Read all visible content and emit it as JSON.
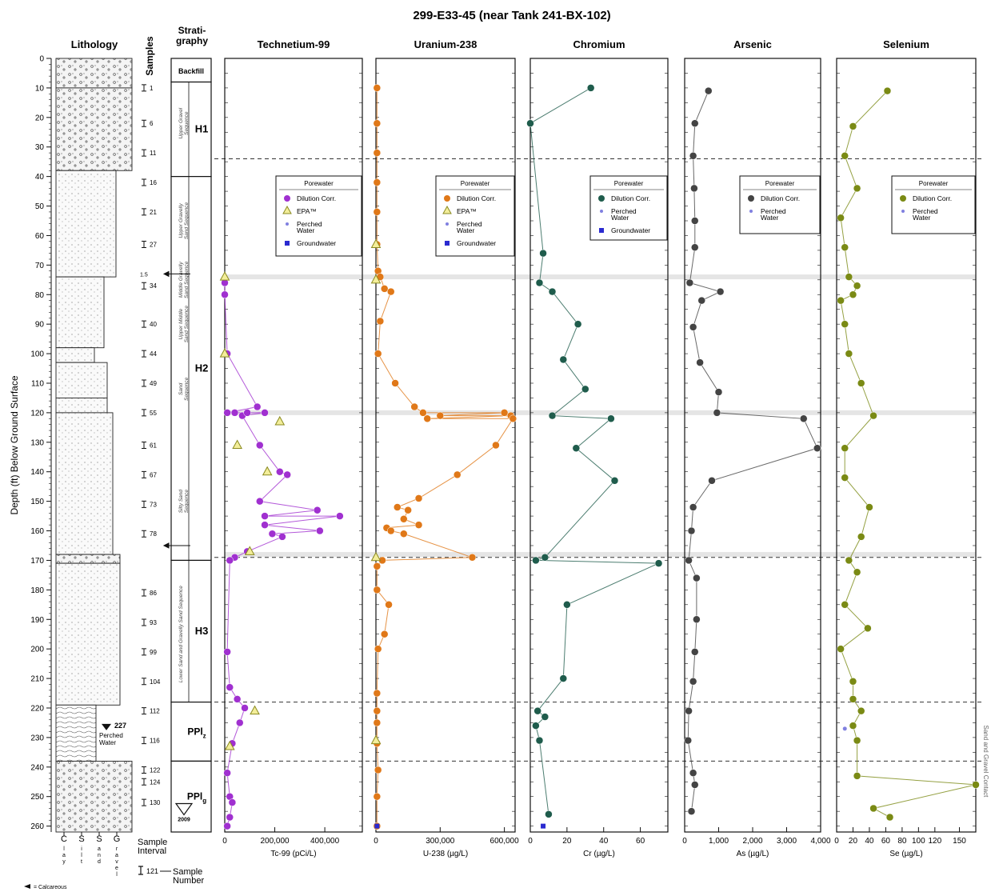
{
  "title": "299-E33-45 (near Tank 241-BX-102)",
  "depth_axis": {
    "label": "Depth (ft) Below Ground Surface",
    "ticks": [
      0,
      10,
      20,
      30,
      40,
      50,
      60,
      70,
      80,
      90,
      100,
      110,
      120,
      130,
      140,
      150,
      160,
      170,
      180,
      190,
      200,
      210,
      220,
      230,
      240,
      250,
      260
    ]
  },
  "columns": {
    "lithology": "Lithology",
    "samples": "Samples",
    "stratigraphy": "Strati-\ngraphy"
  },
  "lithology_axis": [
    "C",
    "S",
    "S",
    "G"
  ],
  "lithology_axis_sub": [
    "l\na\ny",
    "i\nl\nt",
    "a\nn\nd",
    "r\na\nv\ne\nl"
  ],
  "legend_bottom": {
    "interval": "Sample\nInterval",
    "number": "121",
    "number_label": "Sample\nNumber",
    "calcareous": "= Calcareous"
  },
  "samples": [
    {
      "depth": 10,
      "label": "1"
    },
    {
      "depth": 22,
      "label": "6"
    },
    {
      "depth": 32,
      "label": "11"
    },
    {
      "depth": 42,
      "label": "16"
    },
    {
      "depth": 52,
      "label": "21"
    },
    {
      "depth": 63,
      "label": "27"
    },
    {
      "depth": 77,
      "label": "34"
    },
    {
      "depth": 90,
      "label": "40"
    },
    {
      "depth": 100,
      "label": "44"
    },
    {
      "depth": 110,
      "label": "49"
    },
    {
      "depth": 120,
      "label": "55"
    },
    {
      "depth": 131,
      "label": "61"
    },
    {
      "depth": 141,
      "label": "67"
    },
    {
      "depth": 151,
      "label": "73"
    },
    {
      "depth": 161,
      "label": "78"
    },
    {
      "depth": 181,
      "label": "86"
    },
    {
      "depth": 191,
      "label": "93"
    },
    {
      "depth": 201,
      "label": "99"
    },
    {
      "depth": 211,
      "label": "104"
    },
    {
      "depth": 221,
      "label": "112"
    },
    {
      "depth": 231,
      "label": "116"
    },
    {
      "depth": 241,
      "label": "122"
    },
    {
      "depth": 245,
      "label": "124"
    },
    {
      "depth": 252,
      "label": "130"
    }
  ],
  "stratigraphy": {
    "units": [
      {
        "label": "Backfill",
        "top": 0,
        "bottom": 8
      },
      {
        "label": "H1",
        "top": 8,
        "bottom": 40
      },
      {
        "label": "H2",
        "top": 40,
        "bottom": 170
      },
      {
        "label": "H3",
        "top": 170,
        "bottom": 218
      },
      {
        "label": "PPl_z",
        "top": 218,
        "bottom": 238
      },
      {
        "label": "PPl_g",
        "top": 238,
        "bottom": 262
      }
    ],
    "water_level": {
      "depth": 227,
      "label": "227",
      "note": "Perched\nWater"
    },
    "water_level_bottom": {
      "label": "2009"
    },
    "markers": [
      {
        "depth": 73,
        "label": "1.5"
      },
      {
        "depth": 165,
        "label": ""
      }
    ],
    "sequences": [
      "Upper Gravel\nSequence",
      "Upper Gravelly\nSand Sequence",
      "Middle Gravelly\nSand Sequence",
      "Upper Middle\nSand Sequence",
      "Sand\nSequence",
      "Silty Sand\nSequence",
      "Lower Sand and Gravelly Sand Sequence"
    ],
    "right_note": "Sand and Gravel Contact"
  },
  "guides": {
    "dashed": [
      34,
      169,
      218,
      238
    ],
    "gray_bands": [
      74,
      120,
      168
    ]
  },
  "chart_data": [
    {
      "type": "line",
      "title": "Technetium-99",
      "xlabel": "Tc-99 (pCi/L)",
      "xlim": [
        0,
        550000
      ],
      "xticks": [
        0,
        200000,
        400000
      ],
      "xticklabels": [
        "0",
        "200,000",
        "400,000"
      ],
      "color": "#a030d0",
      "legend": {
        "title": "Porewater",
        "items": [
          "Dilution Corr.",
          "EPA™",
          "Perched\nWater",
          "Groundwater"
        ]
      },
      "series": [
        {
          "name": "Dilution Corr.",
          "marker": "circle",
          "points": [
            [
              0,
              76
            ],
            [
              0,
              80
            ],
            [
              10000,
              100
            ],
            [
              10000,
              120
            ],
            [
              40000,
              120
            ],
            [
              70000,
              121
            ],
            [
              90000,
              120
            ],
            [
              130000,
              118
            ],
            [
              160000,
              120
            ],
            [
              140000,
              131
            ],
            [
              220000,
              140
            ],
            [
              250000,
              141
            ],
            [
              140000,
              150
            ],
            [
              160000,
              155
            ],
            [
              370000,
              153
            ],
            [
              460000,
              155
            ],
            [
              160000,
              158
            ],
            [
              190000,
              161
            ],
            [
              380000,
              160
            ],
            [
              230000,
              162
            ],
            [
              40000,
              169
            ],
            [
              90000,
              167
            ],
            [
              20000,
              170
            ],
            [
              10000,
              201
            ],
            [
              20000,
              213
            ],
            [
              50000,
              217
            ],
            [
              80000,
              220
            ],
            [
              60000,
              225
            ],
            [
              30000,
              232
            ],
            [
              10000,
              242
            ],
            [
              20000,
              250
            ],
            [
              30000,
              252
            ],
            [
              20000,
              257
            ],
            [
              10000,
              260
            ]
          ]
        },
        {
          "name": "EPA™",
          "marker": "triangle",
          "points": [
            [
              0,
              74
            ],
            [
              0,
              100
            ],
            [
              50000,
              131
            ],
            [
              170000,
              140
            ],
            [
              220000,
              123
            ],
            [
              100000,
              167
            ],
            [
              120000,
              221
            ],
            [
              20000,
              233
            ]
          ]
        },
        {
          "name": "Perched Water",
          "marker": "small",
          "points": []
        },
        {
          "name": "Groundwater",
          "marker": "square",
          "points": []
        }
      ]
    },
    {
      "type": "line",
      "title": "Uranium-238",
      "xlabel": "U-238 (µg/L)",
      "xlim": [
        0,
        650000
      ],
      "xticks": [
        0,
        300000,
        600000
      ],
      "xticklabels": [
        "0",
        "300,000",
        "600,000"
      ],
      "color": "#e07818",
      "legend": {
        "title": "Porewater",
        "items": [
          "Dilution Corr.",
          "EPA™",
          "Perched\nWater",
          "Groundwater"
        ]
      },
      "series": [
        {
          "name": "Dilution Corr.",
          "marker": "circle",
          "points": [
            [
              5000,
              10
            ],
            [
              5000,
              22
            ],
            [
              5000,
              32
            ],
            [
              5000,
              42
            ],
            [
              5000,
              52
            ],
            [
              5000,
              63
            ],
            [
              10000,
              72
            ],
            [
              20000,
              74
            ],
            [
              40000,
              78
            ],
            [
              70000,
              79
            ],
            [
              20000,
              89
            ],
            [
              10000,
              100
            ],
            [
              90000,
              110
            ],
            [
              180000,
              118
            ],
            [
              220000,
              120
            ],
            [
              240000,
              122
            ],
            [
              300000,
              121
            ],
            [
              600000,
              120
            ],
            [
              630000,
              121
            ],
            [
              640000,
              122
            ],
            [
              560000,
              131
            ],
            [
              380000,
              141
            ],
            [
              200000,
              149
            ],
            [
              100000,
              152
            ],
            [
              150000,
              153
            ],
            [
              50000,
              159
            ],
            [
              130000,
              156
            ],
            [
              70000,
              160
            ],
            [
              130000,
              161
            ],
            [
              200000,
              158
            ],
            [
              450000,
              169
            ],
            [
              30000,
              170
            ],
            [
              5000,
              172
            ],
            [
              5000,
              180
            ],
            [
              60000,
              185
            ],
            [
              40000,
              195
            ],
            [
              10000,
              200
            ],
            [
              5000,
              215
            ],
            [
              5000,
              221
            ],
            [
              5000,
              225
            ],
            [
              5000,
              232
            ],
            [
              10000,
              241
            ],
            [
              5000,
              250
            ],
            [
              5000,
              260
            ]
          ]
        },
        {
          "name": "EPA™",
          "marker": "triangle",
          "points": [
            [
              0,
              63
            ],
            [
              0,
              75
            ],
            [
              0,
              169
            ],
            [
              0,
              231
            ]
          ]
        },
        {
          "name": "Perched Water",
          "marker": "small",
          "points": []
        },
        {
          "name": "Groundwater",
          "marker": "square",
          "points": [
            [
              5000,
              260
            ]
          ]
        }
      ]
    },
    {
      "type": "line",
      "title": "Chromium",
      "xlabel": "Cr (µg/L)",
      "xlim": [
        0,
        75
      ],
      "xticks": [
        0,
        20,
        40,
        60
      ],
      "xticklabels": [
        "0",
        "20",
        "40",
        "60"
      ],
      "color": "#1f5c4c",
      "legend": {
        "title": "Porewater",
        "items": [
          "Dilution Corr.",
          "Perched\nWater",
          "Groundwater"
        ]
      },
      "series": [
        {
          "name": "Dilution Corr.",
          "marker": "circle",
          "points": [
            [
              33,
              10
            ],
            [
              0,
              22
            ],
            [
              7,
              66
            ],
            [
              5,
              76
            ],
            [
              12,
              79
            ],
            [
              26,
              90
            ],
            [
              18,
              102
            ],
            [
              30,
              112
            ],
            [
              12,
              121
            ],
            [
              44,
              122
            ],
            [
              25,
              132
            ],
            [
              46,
              143
            ],
            [
              8,
              169
            ],
            [
              3,
              170
            ],
            [
              70,
              171
            ],
            [
              20,
              185
            ],
            [
              18,
              210
            ],
            [
              4,
              221
            ],
            [
              8,
              223
            ],
            [
              3,
              226
            ],
            [
              5,
              231
            ],
            [
              10,
              256
            ]
          ]
        },
        {
          "name": "Perched Water",
          "marker": "small",
          "points": []
        },
        {
          "name": "Groundwater",
          "marker": "square",
          "points": [
            [
              7,
              260
            ]
          ]
        }
      ]
    },
    {
      "type": "line",
      "title": "Arsenic",
      "xlabel": "As (µg/L)",
      "xlim": [
        0,
        4000
      ],
      "xticks": [
        0,
        1000,
        2000,
        3000,
        4000
      ],
      "xticklabels": [
        "0",
        "1,000",
        "2,000",
        "3,000",
        "4,000"
      ],
      "color": "#444444",
      "legend": {
        "title": "Porewater",
        "items": [
          "Dilution Corr.",
          "Perched\nWater"
        ]
      },
      "series": [
        {
          "name": "Dilution Corr.",
          "marker": "circle",
          "points": [
            [
              700,
              11
            ],
            [
              300,
              22
            ],
            [
              250,
              33
            ],
            [
              280,
              44
            ],
            [
              300,
              55
            ],
            [
              300,
              64
            ],
            [
              150,
              76
            ],
            [
              1050,
              79
            ],
            [
              500,
              82
            ],
            [
              250,
              91
            ],
            [
              450,
              103
            ],
            [
              1000,
              113
            ],
            [
              950,
              120
            ],
            [
              3500,
              122
            ],
            [
              3900,
              132
            ],
            [
              800,
              143
            ],
            [
              250,
              152
            ],
            [
              200,
              160
            ],
            [
              120,
              170
            ],
            [
              350,
              176
            ],
            [
              350,
              190
            ],
            [
              300,
              201
            ],
            [
              250,
              211
            ],
            [
              120,
              221
            ],
            [
              100,
              231
            ],
            [
              250,
              242
            ],
            [
              300,
              246
            ],
            [
              200,
              255
            ]
          ]
        },
        {
          "name": "Perched Water",
          "marker": "small",
          "points": []
        }
      ]
    },
    {
      "type": "line",
      "title": "Selenium",
      "xlabel": "Se (µg/L)",
      "xlim": [
        0,
        170
      ],
      "xticks": [
        0,
        20,
        40,
        60,
        80,
        100,
        120,
        150
      ],
      "xticklabels": [
        "0",
        "20",
        "40",
        "60",
        "80",
        "100",
        "120",
        "150"
      ],
      "color": "#7a8a14",
      "legend": {
        "title": "Porewater",
        "items": [
          "Dilution Corr.",
          "Perched\nWater"
        ]
      },
      "series": [
        {
          "name": "Dilution Corr.",
          "marker": "circle",
          "points": [
            [
              62,
              11
            ],
            [
              20,
              23
            ],
            [
              10,
              33
            ],
            [
              25,
              44
            ],
            [
              5,
              54
            ],
            [
              10,
              64
            ],
            [
              15,
              74
            ],
            [
              25,
              77
            ],
            [
              20,
              80
            ],
            [
              5,
              82
            ],
            [
              10,
              90
            ],
            [
              15,
              100
            ],
            [
              30,
              110
            ],
            [
              45,
              121
            ],
            [
              10,
              132
            ],
            [
              10,
              142
            ],
            [
              40,
              152
            ],
            [
              30,
              162
            ],
            [
              15,
              170
            ],
            [
              25,
              174
            ],
            [
              10,
              185
            ],
            [
              38,
              193
            ],
            [
              5,
              200
            ],
            [
              20,
              211
            ],
            [
              20,
              217
            ],
            [
              30,
              221
            ],
            [
              20,
              226
            ],
            [
              25,
              231
            ],
            [
              25,
              243
            ],
            [
              170,
              246
            ],
            [
              45,
              254
            ],
            [
              65,
              257
            ]
          ]
        },
        {
          "name": "Perched Water",
          "marker": "small",
          "points": [
            [
              10,
              227
            ]
          ]
        }
      ]
    }
  ]
}
